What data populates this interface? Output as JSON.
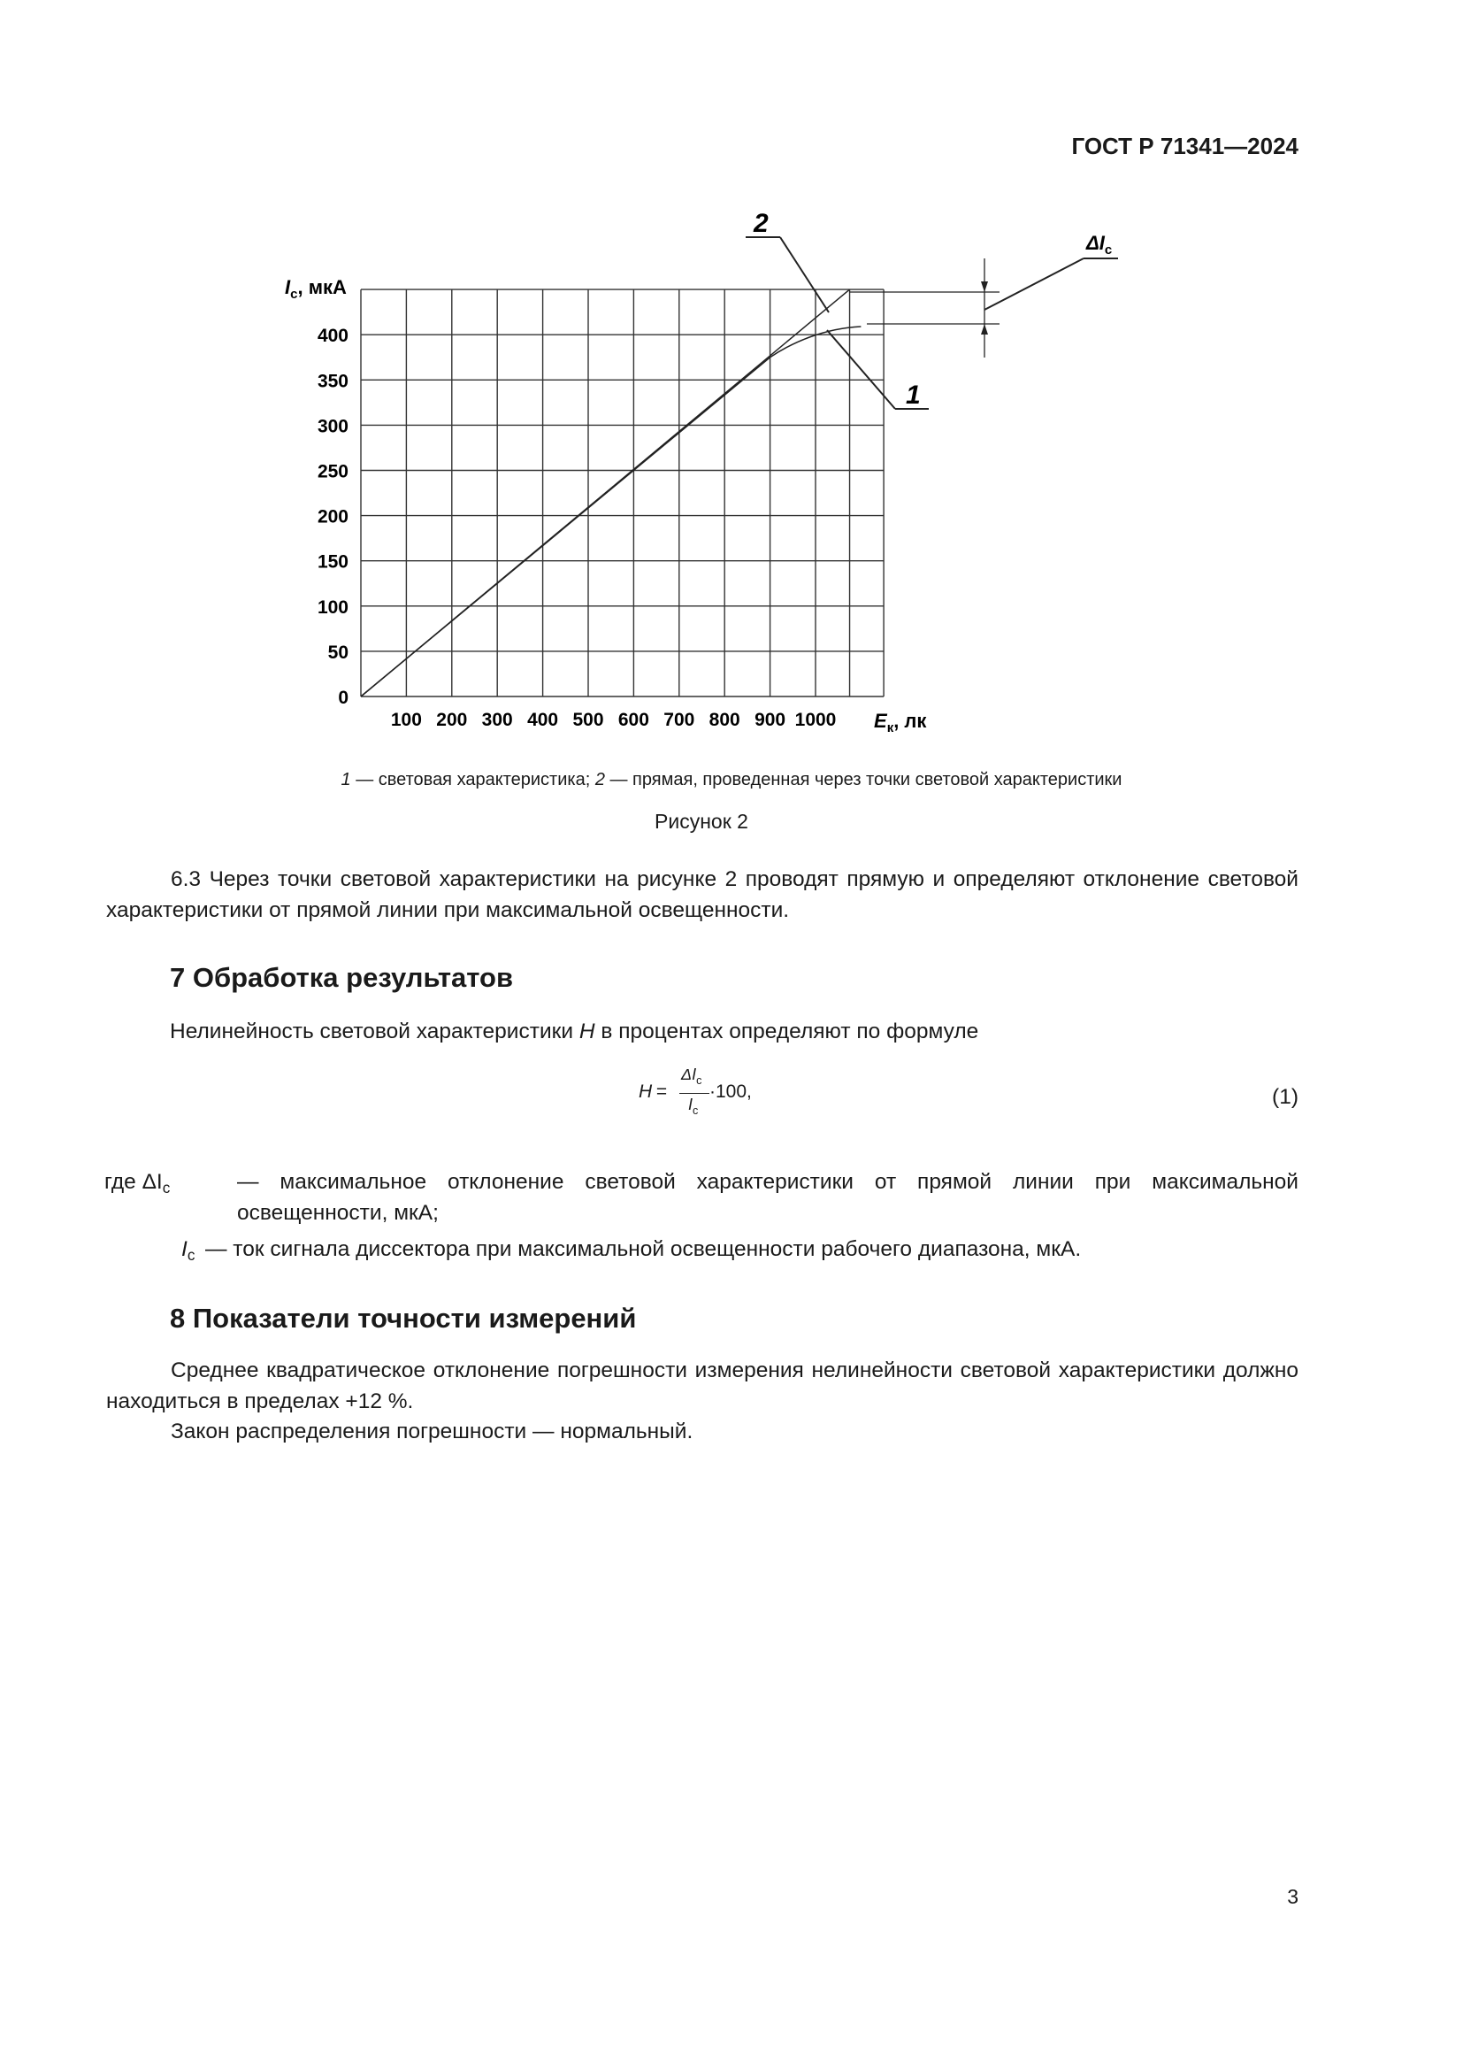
{
  "header": {
    "doc_id": "ГОСТ Р 71341—2024"
  },
  "figure": {
    "caption_parts": [
      "1",
      "— световая характеристика; ",
      "2",
      "— прямая, проведенная через точки световой характеристики"
    ],
    "title": "Рисунок 2",
    "callouts": {
      "line2": "2",
      "curve1": "1",
      "delta": "ΔI",
      "delta_sub": "c"
    }
  },
  "chart_data": {
    "type": "line",
    "ylabel": "I",
    "ylabel_sub": "c",
    "ylabel_unit": ", мкА",
    "xlabel": "E",
    "xlabel_sub": "к",
    "xlabel_unit": ", лк",
    "x_ticks": [
      "100",
      "200",
      "300",
      "400",
      "500",
      "600",
      "700",
      "800",
      "900",
      "1000"
    ],
    "y_ticks": [
      "0",
      "50",
      "100",
      "150",
      "200",
      "250",
      "300",
      "350",
      "400"
    ],
    "xlim": [
      0,
      1150
    ],
    "ylim": [
      0,
      450
    ],
    "grid": true,
    "series": [
      {
        "name": "2",
        "points": [
          [
            0,
            0
          ],
          [
            1075,
            450
          ]
        ]
      },
      {
        "name": "1",
        "points": [
          [
            0,
            0
          ],
          [
            900,
            375
          ],
          [
            950,
            390
          ],
          [
            1000,
            399
          ],
          [
            1050,
            405
          ],
          [
            1100,
            409
          ]
        ]
      }
    ]
  },
  "sections": {
    "p63": "6.3 Через точки световой характеристики на рисунке 2 проводят прямую и определяют отклонение световой характеристики от прямой линии при максимальной освещенности.",
    "h7": "7 Обработка результатов",
    "p7_before": "Нелинейность световой характеристики ",
    "p7_var": "H",
    "p7_after": " в процентах определяют по формуле",
    "formula": {
      "lhs": "H",
      "eq": " = ",
      "num": "ΔI",
      "num_sub": "c",
      "den": "I",
      "den_sub": "c",
      "tail": "·100,",
      "number": "(1)"
    },
    "where": {
      "lead": "где ΔI",
      "lead_sub": "c",
      "def1": "— максимальное отклонение световой характеристики от прямой линии при максимальной освещенности, мкА;",
      "var2": "I",
      "var2_sub": "c",
      "def2": "— ток сигнала диссектора при максимальной освещенности рабочего диапазона, мкА."
    },
    "h8": "8 Показатели точности измерений",
    "p8a": "Среднее квадратическое отклонение погрешности измерения нелинейности световой характеристики должно находиться в пределах +12 %.",
    "p8b": "Закон распределения погрешности — нормальный."
  },
  "page_number": "3"
}
